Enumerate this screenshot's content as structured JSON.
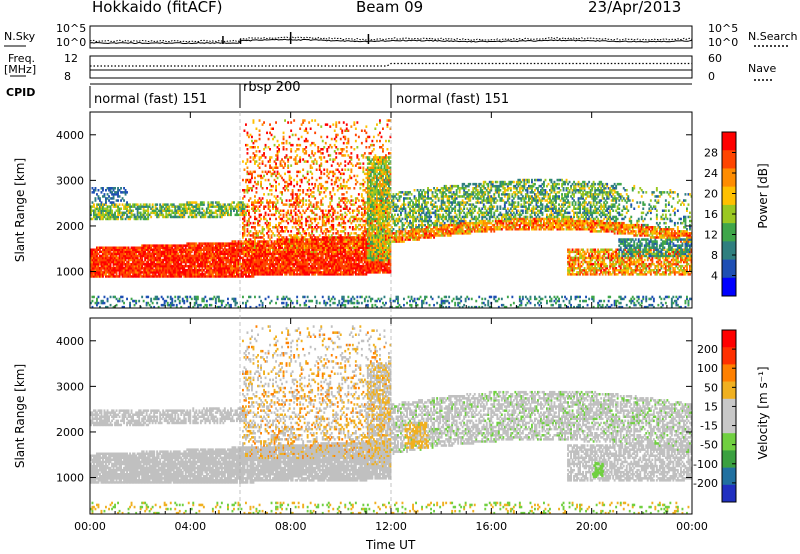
{
  "header": {
    "station": "Hokkaido (fitACF)",
    "beam": "Beam 09",
    "date": "23/Apr/2013"
  },
  "top_panel": {
    "left_label": "N.Sky",
    "right_label": "N.Search",
    "left_ticks": [
      "10^5",
      "10^0"
    ],
    "right_ticks": [
      "10^5",
      "10^0"
    ]
  },
  "freq_panel": {
    "left_label_line1": "Freq.",
    "left_label_line2": "[MHz]",
    "right_label": "Nave",
    "left_ticks": [
      "12",
      "8"
    ],
    "right_ticks": [
      "60",
      "0"
    ]
  },
  "cpid": {
    "label": "CPID",
    "segments": [
      {
        "text": "normal (fast) 151",
        "start_hour": 0,
        "end_hour": 6
      },
      {
        "text": "rbsp 200",
        "start_hour": 6,
        "end_hour": 12
      },
      {
        "text": "normal (fast) 151",
        "start_hour": 12,
        "end_hour": 24
      }
    ]
  },
  "colors": {
    "power_scale": [
      "#0000ff",
      "#1e4fb4",
      "#2f7f7f",
      "#3fa64a",
      "#9ac821",
      "#ffc000",
      "#ff8c00",
      "#ff4500",
      "#ff0000"
    ],
    "velocity_scale": [
      "#2030c0",
      "#2070a0",
      "#3aa040",
      "#70d040",
      "#c8c8c8",
      "#c8c8c8",
      "#f0b020",
      "#ff8000",
      "#ff3000",
      "#ff0000"
    ],
    "ground_scatter": "#c0c0c0"
  },
  "chart_data": [
    {
      "type": "heatmap",
      "panel": "power",
      "ylabel": "Slant Range [km]",
      "yticks": [
        1000,
        2000,
        3000,
        4000
      ],
      "ylim": [
        200,
        4500
      ],
      "xlim": [
        0,
        24
      ],
      "colorbar": {
        "label": "Power [dB]",
        "ticks": [
          "28",
          "24",
          "20",
          "16",
          "12",
          "8",
          "4"
        ],
        "range": [
          0,
          32
        ]
      },
      "echo_regions": [
        {
          "name": "near-range band",
          "start_hour": 0,
          "end_hour": 12,
          "range_km": [
            800,
            1700
          ],
          "power_db": 28
        },
        {
          "name": "upper band",
          "start_hour": 0,
          "end_hour": 6,
          "range_km": [
            2100,
            2500
          ],
          "power_db": 14
        },
        {
          "name": "rbsp scatter",
          "start_hour": 6,
          "end_hour": 12,
          "range_km": [
            1400,
            4300
          ],
          "power_db": 22
        },
        {
          "name": "evening band",
          "start_hour": 12,
          "end_hour": 24,
          "range_km": [
            1100,
            2900
          ],
          "power_db": 18
        }
      ]
    },
    {
      "type": "heatmap",
      "panel": "velocity",
      "ylabel": "Slant Range [km]",
      "yticks": [
        1000,
        2000,
        3000,
        4000
      ],
      "ylim": [
        200,
        4500
      ],
      "xlim": [
        0,
        24
      ],
      "colorbar": {
        "label": "Velocity [m s⁻¹]",
        "ticks": [
          "200",
          "100",
          "50",
          "15",
          "-15",
          "-50",
          "-100",
          "-200"
        ],
        "range": [
          -250,
          250
        ]
      },
      "xlabel": "Time UT",
      "xticks": [
        "00:00",
        "04:00",
        "08:00",
        "12:00",
        "16:00",
        "20:00",
        "00:00"
      ]
    }
  ]
}
